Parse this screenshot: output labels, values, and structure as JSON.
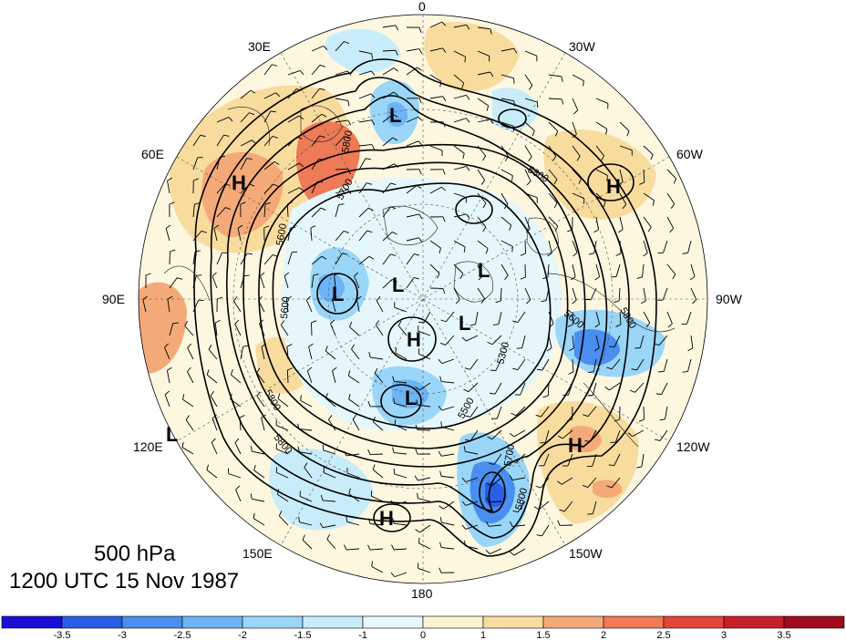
{
  "title": {
    "level": "500 hPa",
    "time": "1200 UTC 15 Nov 1987"
  },
  "longitude_labels": {
    "top": "0",
    "top_right": "30W",
    "upper_right": "60W",
    "right": "90W",
    "lower_right": "120W",
    "bottom_right": "150W",
    "bottom": "180",
    "bottom_left": "150E",
    "lower_left": "120E",
    "left": "90E",
    "upper_left": "60E",
    "top_left": "30E"
  },
  "pressure_centers": [
    {
      "type": "L",
      "label": "L"
    },
    {
      "type": "L",
      "label": "L"
    },
    {
      "type": "L",
      "label": "L"
    },
    {
      "type": "L",
      "label": "L"
    },
    {
      "type": "L",
      "label": "L"
    },
    {
      "type": "L",
      "label": "L"
    },
    {
      "type": "L",
      "label": "L"
    },
    {
      "type": "L",
      "label": "L"
    },
    {
      "type": "H",
      "label": "H"
    },
    {
      "type": "H",
      "label": "H"
    },
    {
      "type": "H",
      "label": "H"
    },
    {
      "type": "H",
      "label": "H"
    },
    {
      "type": "H",
      "label": "H"
    }
  ],
  "contour_labels": [
    "5800",
    "5700",
    "5600",
    "5500",
    "5300",
    "5800",
    "5800",
    "5800",
    "5700",
    "5800",
    "5600",
    "5800",
    "5600"
  ],
  "colorbar": {
    "ticks": [
      "-3.5",
      "-3",
      "-2.5",
      "-2",
      "-1.5",
      "-1",
      "0",
      "1",
      "1.5",
      "2",
      "2.5",
      "3",
      "3.5"
    ],
    "colors": [
      "#1a0fd6",
      "#2a5ee6",
      "#4a8ef0",
      "#6cb4f4",
      "#9ad6f8",
      "#c8ecfa",
      "#e6f7fb",
      "#fcf3d2",
      "#f8dc9e",
      "#f4aa78",
      "#ee7a56",
      "#e4463c",
      "#c81e2a",
      "#a00a1c"
    ]
  }
}
